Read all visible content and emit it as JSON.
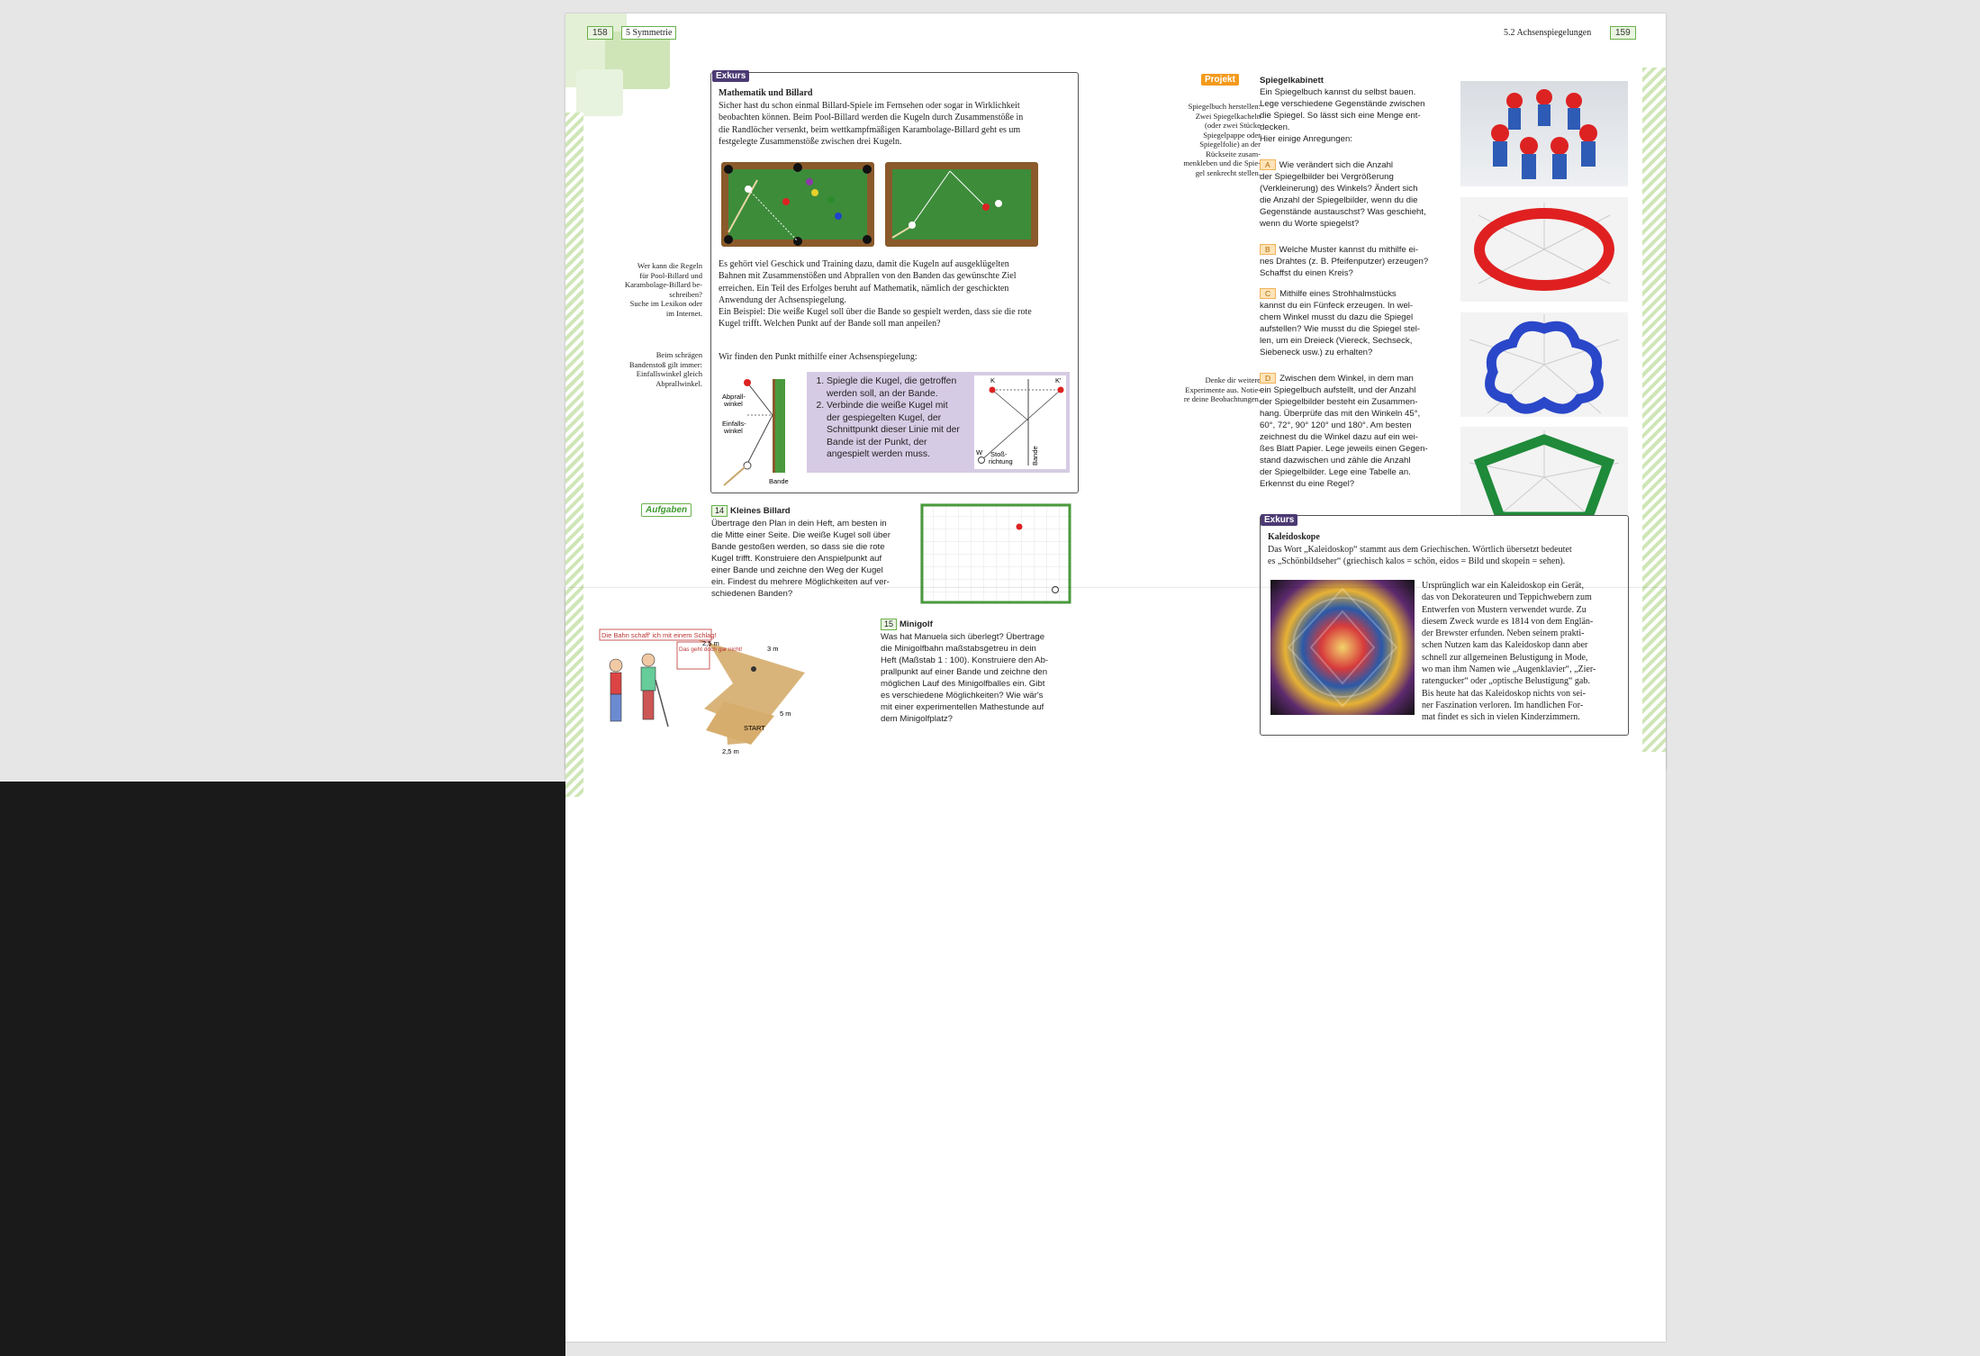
{
  "header": {
    "left_page_number": "158",
    "left_chapter": "5 Symmetrie",
    "right_section": "5.2  Achsenspiegelungen",
    "right_page_number": "159"
  },
  "exkurs_billard": {
    "tag": "Exkurs",
    "title": "Mathematik und Billard",
    "intro": [
      "Sicher hast du schon einmal Billard-Spiele im Fernsehen oder sogar in Wirklichkeit",
      "beobachten können. Beim Pool-Billard werden die Kugeln durch Zusammenstöße in",
      "die Randlöcher versenkt, beim wettkampfmäßigen Karambolage-Billard geht es um",
      "festgelegte Zusammenstöße zwischen drei Kugeln."
    ],
    "middle": [
      "Es gehört viel Geschick und Training dazu, damit die Kugeln auf ausgeklügelten",
      "Bahnen mit Zusammenstößen und Abprallen von den Banden das gewünschte Ziel",
      "erreichen. Ein Teil des Erfolges beruht auf Mathematik, nämlich der geschickten",
      "Anwendung der Achsenspiegelung.",
      "Ein Beispiel: Die weiße Kugel soll über die Bande so gespielt werden, dass sie die rote",
      "Kugel trifft. Welchen Punkt auf der Bande soll man anpeilen?"
    ],
    "question": "Wir finden den Punkt mithilfe einer Achsenspiegelung:",
    "steps": [
      "Spiegle die Kugel, die getroffen werden soll, an der Bande.",
      "Verbinde die weiße Kugel mit der gespiegelten Kugel, der Schnittpunkt dieser Linie mit der Bande ist der Punkt, der angespielt werden muss."
    ],
    "diagram_labels": {
      "abprall": "Abprall-",
      "abprall2": "winkel",
      "einfall": "Einfalls-",
      "einfall2": "winkel",
      "bande": "Bande",
      "k": "K",
      "k_prime": "K'",
      "w": "W",
      "stoss1": "Stoß-",
      "stoss2": "richtung",
      "bande_v": "Bande"
    }
  },
  "margin_notes": {
    "pool_rules": [
      "Wer kann die Regeln",
      "für Pool-Billard und",
      "Karambolage-Billard be-",
      "schreiben?",
      "Suche im Lexikon oder",
      "im Internet."
    ],
    "angle_rule": [
      "Beim schrägen",
      "Bandenstoß gilt immer:",
      "Einfallswinkel gleich",
      "Abprallwinkel."
    ],
    "mirror_book": [
      "Spiegelbuch herstellen:",
      "Zwei Spiegelkacheln",
      "(oder zwei Stücke",
      "Spiegelpappe oder",
      "Spiegelfolie) an der",
      "Rückseite zusam-",
      "menkleben und die Spie-",
      "gel senkrecht stellen."
    ],
    "experiments": [
      "Denke dir weitere",
      "Experimente aus. Notie-",
      "re deine Beobachtungen."
    ]
  },
  "aufgaben": {
    "tag": "Aufgaben",
    "task14": {
      "number": "14",
      "title": "Kleines Billard",
      "lines": [
        "Übertrage den Plan in dein Heft, am besten in",
        "die Mitte einer Seite. Die weiße Kugel soll über",
        "Bande gestoßen werden, so dass sie die rote",
        "Kugel trifft. Konstruiere den Anspielpunkt auf",
        "einer Bande und zeichne den Weg der Kugel",
        "ein. Findest du mehrere Möglichkeiten auf ver-",
        "schiedenen Banden?"
      ]
    },
    "task15": {
      "number": "15",
      "title": "Minigolf",
      "lines": [
        "Was hat Manuela sich überlegt? Übertrage",
        "die Minigolfbahn maßstabsgetreu in dein",
        "Heft (Maßstab 1 : 100). Konstruiere den Ab-",
        "prallpunkt auf einer Bande und zeichne den",
        "möglichen Lauf des Minigolfballes ein. Gibt",
        "es verschiedene Möglichkeiten? Wie wär's",
        "mit einer experimentellen Mathestunde auf",
        "dem Minigolfplatz?"
      ],
      "speech1": "Die Bahn schaff' ich mit einem Schlag!",
      "speech2": "Das geht doch gar nicht!",
      "dim_3m": "3 m",
      "dim_25m": "2,5 m",
      "dim_5m": "5 m",
      "start": "START"
    }
  },
  "projekt": {
    "tag": "Projekt",
    "title": "Spiegelkabinett",
    "intro": [
      "Ein Spiegelbuch kannst du selbst bauen.",
      "Lege verschiedene Gegenstände zwischen",
      "die Spiegel. So lässt sich eine Menge ent-",
      "decken.",
      "Hier einige Anregungen:"
    ],
    "a": {
      "letter": "A",
      "lines": [
        "Wie verändert sich die Anzahl",
        "der Spiegelbilder bei Vergrößerung",
        "(Verkleinerung) des Winkels? Ändert sich",
        "die Anzahl der Spiegelbilder, wenn du die",
        "Gegenstände austauschst? Was geschieht,",
        "wenn du Worte spiegelst?"
      ]
    },
    "b": {
      "letter": "B",
      "lines": [
        "Welche Muster kannst du mithilfe ei-",
        "nes Drahtes (z. B. Pfeifenputzer) erzeugen?",
        "Schaffst du einen Kreis?"
      ]
    },
    "c": {
      "letter": "C",
      "lines": [
        "Mithilfe eines Strohhalmstücks",
        "kannst du ein Fünfeck erzeugen. In wel-",
        "chem Winkel musst du dazu die Spiegel",
        "aufstellen? Wie musst du die Spiegel stel-",
        "len, um ein Dreieck (Viereck, Sechseck,",
        "Siebeneck usw.) zu erhalten?"
      ]
    },
    "d": {
      "letter": "D",
      "lines": [
        "Zwischen dem Winkel, in dem man",
        "ein Spiegelbuch aufstellt, und der Anzahl",
        "der Spiegelbilder besteht ein Zusammen-",
        "hang. Überprüfe das mit den Winkeln 45°,",
        "60°, 72°, 90° 120° und 180°. Am besten",
        "zeichnest du die Winkel dazu auf ein wei-",
        "ßes Blatt Papier. Lege jeweils einen Gegen-",
        "stand dazwischen und zähle die Anzahl",
        "der Spiegelbilder. Lege eine Tabelle an.",
        "Erkennst du eine Regel?"
      ]
    }
  },
  "exkurs_kaleidoskop": {
    "tag": "Exkurs",
    "title": "Kaleidoskope",
    "intro": [
      "Das Wort „Kaleidoskop“ stammt aus dem Griechischen. Wörtlich übersetzt bedeutet",
      "es „Schönbildseher“ (griechisch kalos = schön, eidos = Bild und skopein = sehen)."
    ],
    "lines": [
      "Ursprünglich war ein Kaleidoskop ein Gerät,",
      "das von Dekorateuren und Teppichwebern zum",
      "Entwerfen von Mustern verwendet wurde. Zu",
      "diesem Zweck wurde es 1814 von dem Englän-",
      "der Brewster erfunden. Neben seinem prakti-",
      "schen Nutzen kam das Kaleidoskop dann aber",
      "schnell zur allgemeinen Belustigung in Mode,",
      "wo man ihm Namen wie „Augenklavier“, „Zier-",
      "ratengucker“ oder „optische Belustigung“ gab.",
      "Bis heute hat das Kaleidoskop nichts von sei-",
      "ner Faszination verloren. Im handlichen For-",
      "mat findet es sich in vielen Kinderzimmern."
    ]
  },
  "colors": {
    "green": "#6ab04c",
    "purple": "#4b3a73",
    "orange": "#f39a1c",
    "felt": "#3d8c3a",
    "wood": "#8a5a2b",
    "lilac": "#d6cbe4"
  }
}
